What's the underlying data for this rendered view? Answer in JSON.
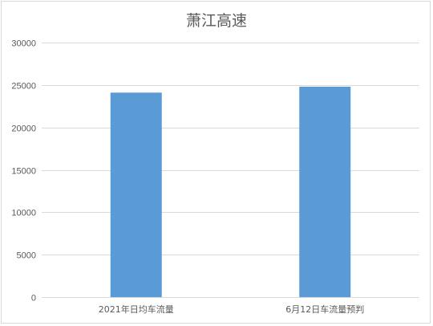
{
  "chart_data": {
    "type": "bar",
    "title": "萧江高速",
    "categories": [
      "2021年日均车流量",
      "6月12日车流量预判"
    ],
    "series": [
      {
        "values": [
          24100,
          24800
        ],
        "color": "#5b9bd5"
      }
    ],
    "ylim": [
      0,
      30000
    ],
    "yticks": [
      0,
      5000,
      10000,
      15000,
      20000,
      25000,
      30000
    ],
    "xlabel": "",
    "ylabel": "",
    "grid": true,
    "legend": "none",
    "grid_color": "#d9d9d9",
    "text_color": "#595959"
  }
}
